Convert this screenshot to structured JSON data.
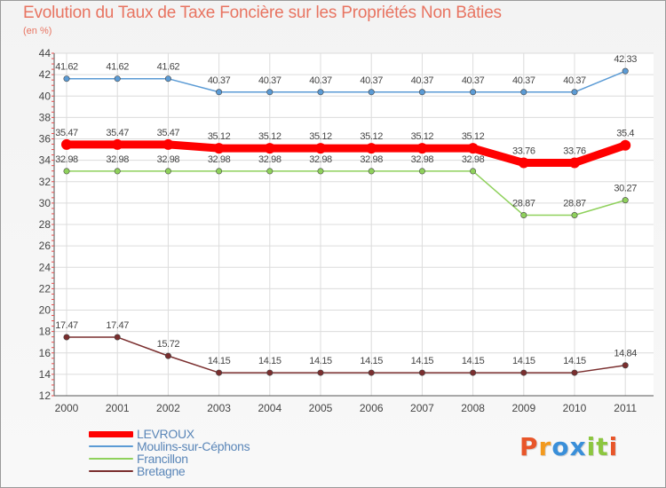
{
  "chart_data": {
    "type": "line",
    "title": "Evolution du Taux de Taxe Foncière sur les Propriétés Non Bâties",
    "subtitle": "(en %)",
    "x": [
      "2000",
      "2001",
      "2002",
      "2003",
      "2004",
      "2005",
      "2006",
      "2007",
      "2008",
      "2009",
      "2010",
      "2011"
    ],
    "ylim": [
      12,
      44
    ],
    "yticks": [
      "12",
      "14",
      "16",
      "18",
      "20",
      "22",
      "24",
      "26",
      "28",
      "30",
      "32",
      "34",
      "36",
      "38",
      "40",
      "42",
      "44"
    ],
    "grid": true,
    "series": [
      {
        "name": "LEVROUX",
        "color": "#ff0000",
        "values": [
          35.47,
          35.47,
          35.47,
          35.12,
          35.12,
          35.12,
          35.12,
          35.12,
          35.12,
          33.76,
          33.76,
          35.4
        ],
        "labels": [
          "35.47",
          "35.47",
          "35.47",
          "35.12",
          "35.12",
          "35.12",
          "35.12",
          "35.12",
          "35.12",
          "33.76",
          "33.76",
          "35.4"
        ]
      },
      {
        "name": "Moulins-sur-Céphons",
        "color": "#5b9bd5",
        "values": [
          41.62,
          41.62,
          41.62,
          40.37,
          40.37,
          40.37,
          40.37,
          40.37,
          40.37,
          40.37,
          40.37,
          42.33
        ],
        "labels": [
          "41.62",
          "41.62",
          "41.62",
          "40.37",
          "40.37",
          "40.37",
          "40.37",
          "40.37",
          "40.37",
          "40.37",
          "40.37",
          "42.33"
        ]
      },
      {
        "name": "Francillon",
        "color": "#8fd15c",
        "values": [
          32.98,
          32.98,
          32.98,
          32.98,
          32.98,
          32.98,
          32.98,
          32.98,
          32.98,
          28.87,
          28.87,
          30.27
        ],
        "labels": [
          "32.98",
          "32.98",
          "32.98",
          "32.98",
          "32.98",
          "32.98",
          "32.98",
          "32.98",
          "32.98",
          "28.87",
          "28.87",
          "30.27"
        ]
      },
      {
        "name": "Bretagne",
        "color": "#7a2e2e",
        "values": [
          17.47,
          17.47,
          15.72,
          14.15,
          14.15,
          14.15,
          14.15,
          14.15,
          14.15,
          14.15,
          14.15,
          14.84
        ],
        "labels": [
          "17.47",
          "17.47",
          "15.72",
          "14.15",
          "14.15",
          "14.15",
          "14.15",
          "14.15",
          "14.15",
          "14.15",
          "14.15",
          "14.84"
        ]
      }
    ],
    "legend": "bottom-left"
  },
  "logo": {
    "letters": [
      "P",
      "r",
      "o",
      "x",
      "i",
      "t",
      "i"
    ],
    "colors": [
      "#e8562a",
      "#f39a1e",
      "#3a8fd9",
      "#3a8fd9",
      "#8cc63f",
      "#8cc63f",
      "#e8562a"
    ]
  }
}
